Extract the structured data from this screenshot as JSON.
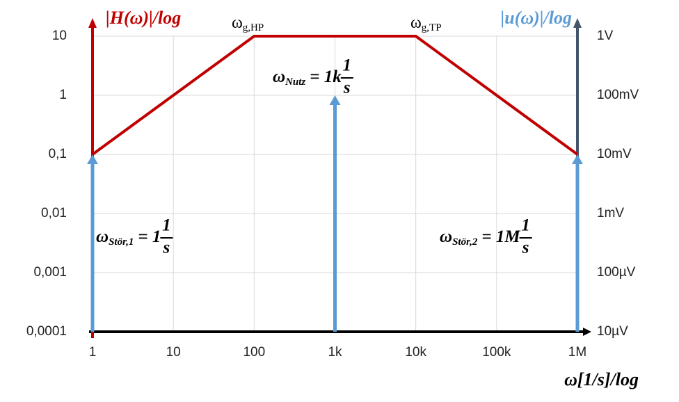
{
  "chart_data": {
    "type": "line",
    "xscale": "log",
    "yscale": "log",
    "y2scale": "log",
    "grid": true,
    "xlim": [
      1,
      1000000
    ],
    "xticks": [
      1,
      10,
      100,
      {
        "value": 1000,
        "label": "1k"
      },
      {
        "value": 10000,
        "label": "10k"
      },
      {
        "value": 100000,
        "label": "100k"
      },
      {
        "value": 1000000,
        "label": "1M"
      }
    ],
    "ylim": [
      0.0001,
      10
    ],
    "yticks": [
      {
        "value": 0.0001,
        "label": "0,0001"
      },
      {
        "value": 0.001,
        "label": "0,001"
      },
      {
        "value": 0.01,
        "label": "0,01"
      },
      {
        "value": 0.1,
        "label": "0,1"
      },
      1,
      10
    ],
    "y2lim": [
      1e-05,
      1
    ],
    "y2ticks": [
      {
        "value": 1e-05,
        "label": "10µV"
      },
      {
        "value": 0.0001,
        "label": "100µV"
      },
      {
        "value": 0.001,
        "label": "1mV"
      },
      {
        "value": 0.01,
        "label": "10mV"
      },
      {
        "value": 0.1,
        "label": "100mV"
      },
      {
        "value": 1,
        "label": "1V"
      }
    ],
    "ylabel": "|H(ω)|/log",
    "y2label": "|u(ω)|/log",
    "xlabel": "ω[1/s]/log",
    "ycolor": "#c00000",
    "y2color": "#5b9bd5",
    "y2axiscolor": "#44546a",
    "series": [
      {
        "color": "#c00000",
        "x": [
          1,
          100,
          10000,
          1000000
        ],
        "values": [
          0.1,
          10,
          10,
          0.1
        ]
      },
      {
        "color": "#5b9bd5",
        "axis": "y2",
        "style": "stem",
        "x": [
          1,
          1000,
          1000000
        ],
        "values": [
          0.01,
          0.1,
          0.01
        ]
      }
    ],
    "annotations": [
      {
        "symbol": "ω",
        "subscript": "g,HP"
      },
      {
        "symbol": "ω",
        "subscript": "g,TP"
      },
      {
        "symbol": "ω",
        "subscript": "Nutz",
        "rhs": "= 1k",
        "numerator": "1",
        "denominator": "s"
      },
      {
        "symbol": "ω",
        "subscript": "Stör,1",
        "rhs": "= 1",
        "numerator": "1",
        "denominator": "s"
      },
      {
        "symbol": "ω",
        "subscript": "Stör,2",
        "rhs": "= 1M",
        "numerator": "1",
        "denominator": "s"
      }
    ]
  }
}
